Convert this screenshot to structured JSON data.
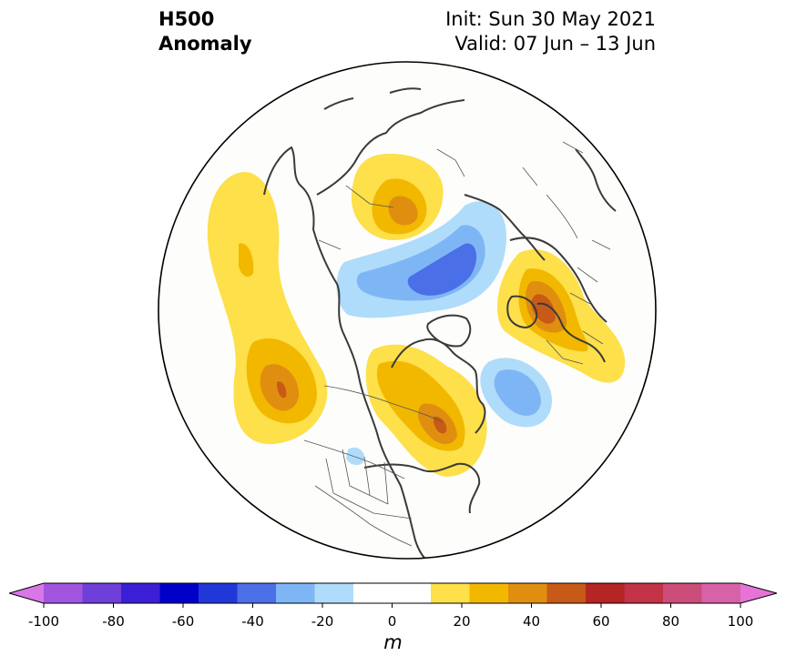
{
  "header": {
    "title_line1": "H500",
    "title_line2": "Anomaly",
    "init": "Init: Sun 30 May 2021",
    "valid": "Valid: 07 Jun – 13 Jun"
  },
  "colorbar": {
    "ticks": [
      "-100",
      "-80",
      "-60",
      "-40",
      "-20",
      "0",
      "20",
      "40",
      "60",
      "80",
      "100"
    ],
    "unit": "m",
    "colors": [
      "#d977e6",
      "#a155df",
      "#6f3fd9",
      "#3b1fd6",
      "#0000c8",
      "#2137d8",
      "#4b6fe6",
      "#7eb6f5",
      "#b0dcfb",
      "#ffffff",
      "#ffffff",
      "#fde04a",
      "#f2b800",
      "#e08e10",
      "#c75a17",
      "#b42523",
      "#c23347",
      "#cc4d7a",
      "#d862a8",
      "#e574d6"
    ]
  },
  "map_features": {
    "projection": "north-polar-stereographic",
    "regions": [
      "North America",
      "Greenland",
      "Europe",
      "Asia",
      "Arctic"
    ]
  }
}
